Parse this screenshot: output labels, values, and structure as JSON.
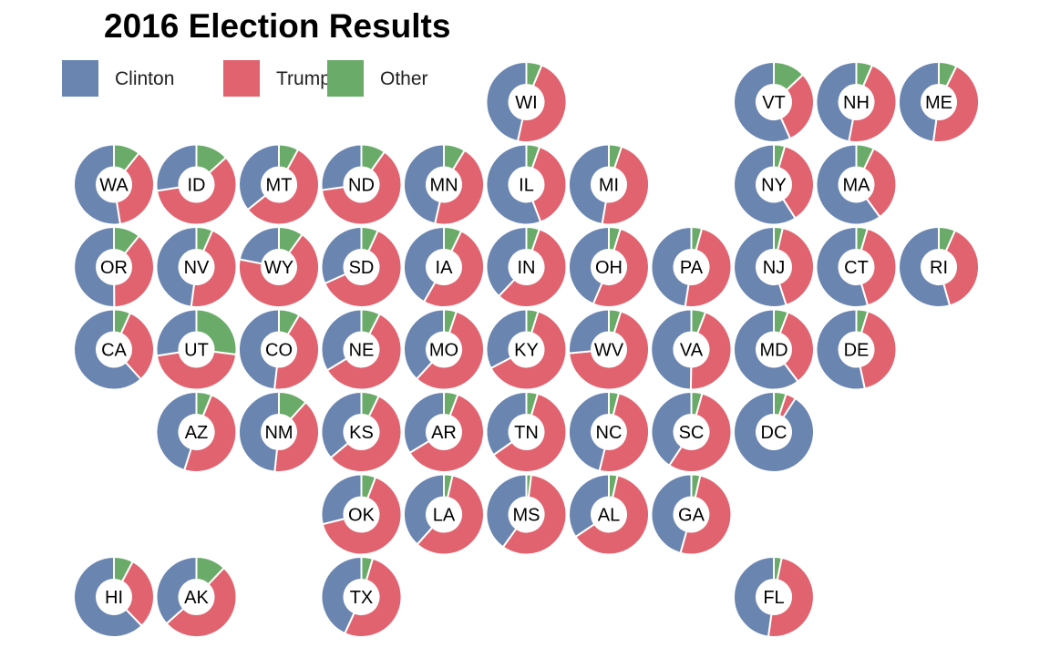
{
  "chart_data": {
    "type": "donut-tile-map",
    "title": "2016 Election Results",
    "legend": {
      "placement": "top-left",
      "items": [
        {
          "key": "clinton",
          "label": "Clinton",
          "color": "#6a85b0"
        },
        {
          "key": "trump",
          "label": "Trump",
          "color": "#e0636f"
        },
        {
          "key": "other",
          "label": "Other",
          "color": "#6aab6a"
        }
      ]
    },
    "share_order": [
      "other",
      "trump",
      "clinton"
    ],
    "states": [
      {
        "abbr": "WI",
        "row": 0,
        "col": 5,
        "clinton": 46.5,
        "trump": 47.2,
        "other": 6.3
      },
      {
        "abbr": "VT",
        "row": 0,
        "col": 8,
        "clinton": 56.7,
        "trump": 30.3,
        "other": 13.0
      },
      {
        "abbr": "NH",
        "row": 0,
        "col": 9,
        "clinton": 47.0,
        "trump": 46.5,
        "other": 6.5
      },
      {
        "abbr": "ME",
        "row": 0,
        "col": 10,
        "clinton": 47.8,
        "trump": 44.9,
        "other": 7.3
      },
      {
        "abbr": "WA",
        "row": 1,
        "col": 0,
        "clinton": 52.5,
        "trump": 36.8,
        "other": 10.7
      },
      {
        "abbr": "ID",
        "row": 1,
        "col": 1,
        "clinton": 27.5,
        "trump": 59.3,
        "other": 13.2
      },
      {
        "abbr": "MT",
        "row": 1,
        "col": 2,
        "clinton": 35.8,
        "trump": 56.2,
        "other": 8.0
      },
      {
        "abbr": "ND",
        "row": 1,
        "col": 3,
        "clinton": 27.2,
        "trump": 63.0,
        "other": 9.8
      },
      {
        "abbr": "MN",
        "row": 1,
        "col": 4,
        "clinton": 46.4,
        "trump": 44.9,
        "other": 8.7
      },
      {
        "abbr": "IL",
        "row": 1,
        "col": 5,
        "clinton": 55.8,
        "trump": 38.8,
        "other": 5.4
      },
      {
        "abbr": "MI",
        "row": 1,
        "col": 6,
        "clinton": 47.3,
        "trump": 47.5,
        "other": 5.2
      },
      {
        "abbr": "NY",
        "row": 1,
        "col": 8,
        "clinton": 59.0,
        "trump": 36.5,
        "other": 4.5
      },
      {
        "abbr": "MA",
        "row": 1,
        "col": 9,
        "clinton": 60.0,
        "trump": 32.8,
        "other": 7.2
      },
      {
        "abbr": "OR",
        "row": 2,
        "col": 0,
        "clinton": 50.1,
        "trump": 39.1,
        "other": 10.8
      },
      {
        "abbr": "NV",
        "row": 2,
        "col": 1,
        "clinton": 47.9,
        "trump": 45.5,
        "other": 6.6
      },
      {
        "abbr": "WY",
        "row": 2,
        "col": 2,
        "clinton": 21.9,
        "trump": 68.2,
        "other": 9.9
      },
      {
        "abbr": "SD",
        "row": 2,
        "col": 3,
        "clinton": 31.7,
        "trump": 61.5,
        "other": 6.8
      },
      {
        "abbr": "IA",
        "row": 2,
        "col": 4,
        "clinton": 41.7,
        "trump": 51.1,
        "other": 7.2
      },
      {
        "abbr": "IN",
        "row": 2,
        "col": 5,
        "clinton": 37.9,
        "trump": 56.8,
        "other": 5.3
      },
      {
        "abbr": "OH",
        "row": 2,
        "col": 6,
        "clinton": 43.6,
        "trump": 51.7,
        "other": 4.7
      },
      {
        "abbr": "PA",
        "row": 2,
        "col": 7,
        "clinton": 47.5,
        "trump": 48.2,
        "other": 4.3
      },
      {
        "abbr": "NJ",
        "row": 2,
        "col": 8,
        "clinton": 55.0,
        "trump": 41.4,
        "other": 3.6
      },
      {
        "abbr": "CT",
        "row": 2,
        "col": 9,
        "clinton": 54.6,
        "trump": 40.9,
        "other": 4.5
      },
      {
        "abbr": "RI",
        "row": 2,
        "col": 10,
        "clinton": 54.4,
        "trump": 38.9,
        "other": 6.7
      },
      {
        "abbr": "CA",
        "row": 3,
        "col": 0,
        "clinton": 61.7,
        "trump": 31.6,
        "other": 6.7
      },
      {
        "abbr": "UT",
        "row": 3,
        "col": 1,
        "clinton": 27.5,
        "trump": 45.5,
        "other": 27.0
      },
      {
        "abbr": "CO",
        "row": 3,
        "col": 2,
        "clinton": 48.2,
        "trump": 43.3,
        "other": 8.5
      },
      {
        "abbr": "NE",
        "row": 3,
        "col": 3,
        "clinton": 33.7,
        "trump": 58.7,
        "other": 7.6
      },
      {
        "abbr": "MO",
        "row": 3,
        "col": 4,
        "clinton": 38.1,
        "trump": 56.8,
        "other": 5.1
      },
      {
        "abbr": "KY",
        "row": 3,
        "col": 5,
        "clinton": 32.7,
        "trump": 62.5,
        "other": 4.8
      },
      {
        "abbr": "WV",
        "row": 3,
        "col": 6,
        "clinton": 26.5,
        "trump": 68.6,
        "other": 4.9
      },
      {
        "abbr": "VA",
        "row": 3,
        "col": 7,
        "clinton": 49.8,
        "trump": 44.4,
        "other": 5.8
      },
      {
        "abbr": "MD",
        "row": 3,
        "col": 8,
        "clinton": 60.3,
        "trump": 33.9,
        "other": 5.8
      },
      {
        "abbr": "DE",
        "row": 3,
        "col": 9,
        "clinton": 53.4,
        "trump": 41.9,
        "other": 4.7
      },
      {
        "abbr": "AZ",
        "row": 4,
        "col": 1,
        "clinton": 45.1,
        "trump": 48.7,
        "other": 6.2
      },
      {
        "abbr": "NM",
        "row": 4,
        "col": 2,
        "clinton": 48.3,
        "trump": 40.0,
        "other": 11.7
      },
      {
        "abbr": "KS",
        "row": 4,
        "col": 3,
        "clinton": 36.1,
        "trump": 56.7,
        "other": 7.2
      },
      {
        "abbr": "AR",
        "row": 4,
        "col": 4,
        "clinton": 33.7,
        "trump": 60.6,
        "other": 5.7
      },
      {
        "abbr": "TN",
        "row": 4,
        "col": 5,
        "clinton": 34.7,
        "trump": 60.7,
        "other": 4.6
      },
      {
        "abbr": "NC",
        "row": 4,
        "col": 6,
        "clinton": 46.2,
        "trump": 49.8,
        "other": 4.0
      },
      {
        "abbr": "SC",
        "row": 4,
        "col": 7,
        "clinton": 40.7,
        "trump": 54.9,
        "other": 4.4
      },
      {
        "abbr": "DC",
        "row": 4,
        "col": 8,
        "clinton": 90.9,
        "trump": 4.1,
        "other": 5.0
      },
      {
        "abbr": "OK",
        "row": 5,
        "col": 3,
        "clinton": 28.9,
        "trump": 65.3,
        "other": 5.8
      },
      {
        "abbr": "LA",
        "row": 5,
        "col": 4,
        "clinton": 38.4,
        "trump": 58.1,
        "other": 3.5
      },
      {
        "abbr": "MS",
        "row": 5,
        "col": 5,
        "clinton": 40.1,
        "trump": 57.9,
        "other": 2.0
      },
      {
        "abbr": "AL",
        "row": 5,
        "col": 6,
        "clinton": 34.4,
        "trump": 62.1,
        "other": 3.5
      },
      {
        "abbr": "GA",
        "row": 5,
        "col": 7,
        "clinton": 45.6,
        "trump": 50.8,
        "other": 3.6
      },
      {
        "abbr": "HI",
        "row": 6,
        "col": 0,
        "clinton": 62.2,
        "trump": 30.0,
        "other": 7.8
      },
      {
        "abbr": "AK",
        "row": 6,
        "col": 1,
        "clinton": 36.6,
        "trump": 51.3,
        "other": 12.1
      },
      {
        "abbr": "TX",
        "row": 6,
        "col": 3,
        "clinton": 43.2,
        "trump": 52.2,
        "other": 4.6
      },
      {
        "abbr": "FL",
        "row": 6,
        "col": 8,
        "clinton": 47.8,
        "trump": 49.0,
        "other": 3.2
      }
    ]
  }
}
